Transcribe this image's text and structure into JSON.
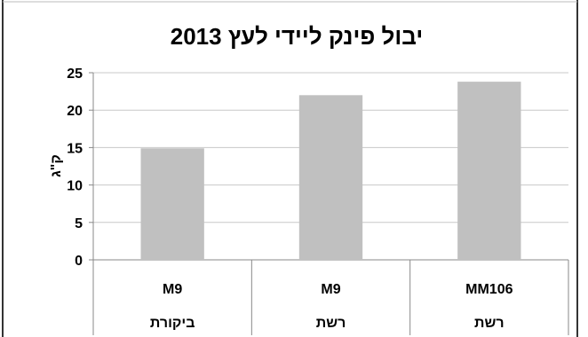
{
  "chart_data": {
    "type": "bar",
    "title": "יבול פינק ליידי לעץ 2013",
    "ylabel": "ק\"ג",
    "xlabel": "",
    "ylim": [
      0,
      25
    ],
    "yticks": [
      0,
      5,
      10,
      15,
      20,
      25
    ],
    "grid": true,
    "legend": "none",
    "bar_color": "#c0c0c0",
    "categories": [
      {
        "rootstock": "MM106",
        "net": "רשת"
      },
      {
        "rootstock": "M9",
        "net": "רשת"
      },
      {
        "rootstock": "M9",
        "net": "ביקורת"
      }
    ],
    "values": [
      23.8,
      22.0,
      14.9
    ]
  }
}
